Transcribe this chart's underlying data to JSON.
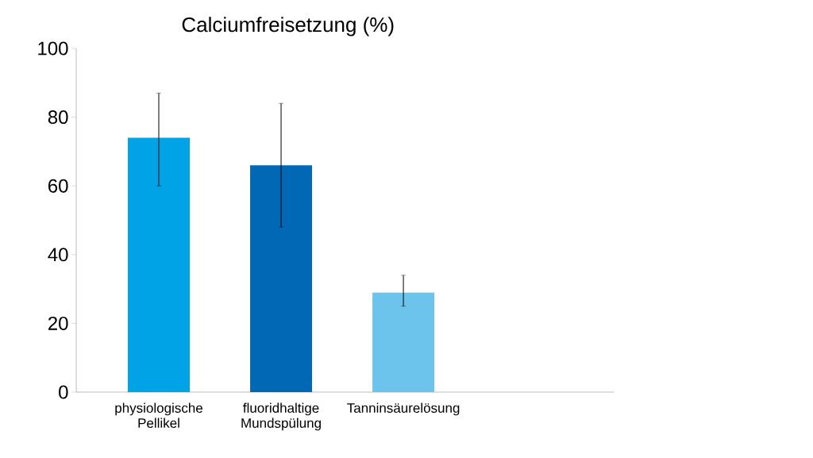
{
  "chart_data": {
    "type": "bar",
    "title": "Calciumfreisetzung (%)",
    "categories": [
      "physiologische Pellikel",
      "fluoridhaltige Mundspülung",
      "Tanninsäurelösung"
    ],
    "values": [
      74,
      66,
      29
    ],
    "colors": [
      "#00a3e6",
      "#0068b4",
      "#6cc4ec"
    ],
    "errors": [
      [
        60,
        87
      ],
      [
        48,
        84
      ],
      [
        25,
        34
      ]
    ],
    "ylim": [
      0,
      100
    ],
    "yticks": [
      0,
      20,
      40,
      60,
      80,
      100
    ]
  }
}
